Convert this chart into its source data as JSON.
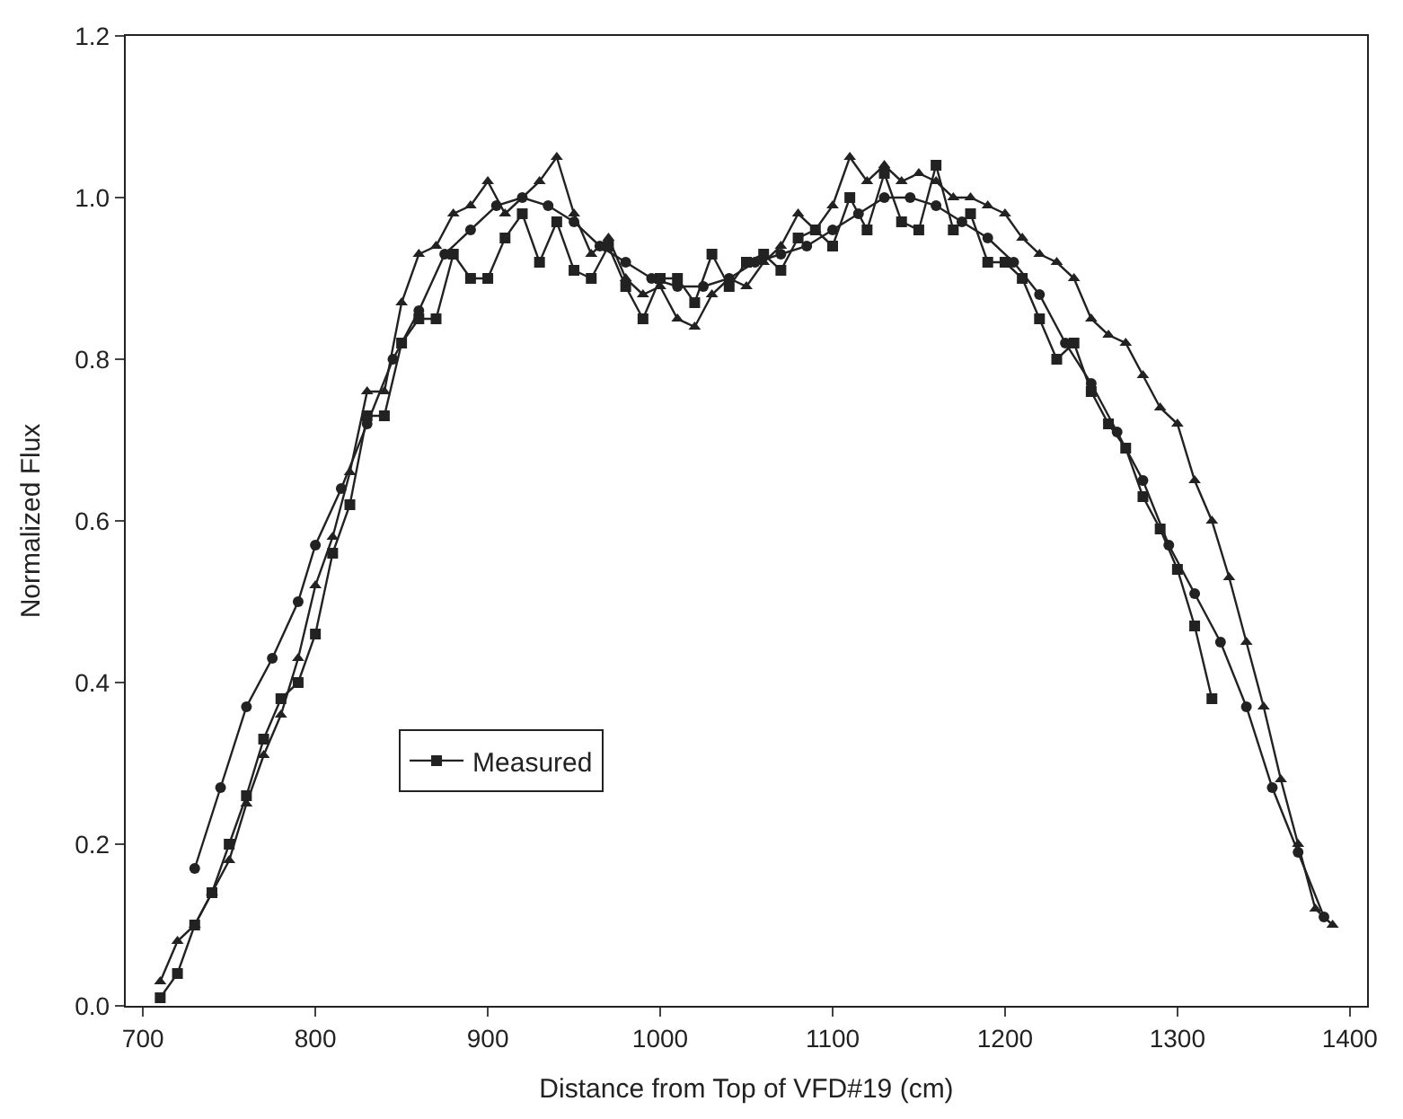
{
  "chart_data": {
    "type": "line",
    "xlabel": "Distance from Top of VFD#19 (cm)",
    "ylabel": "Normalized Flux",
    "xlim": [
      690,
      1410
    ],
    "xticks": [
      700,
      800,
      900,
      1000,
      1100,
      1200,
      1300,
      1400
    ],
    "ylim": [
      0,
      1.2
    ],
    "yticks": [
      {
        "value": 0,
        "label": "0.0"
      },
      0.2,
      0.4,
      0.6,
      0.8,
      {
        "value": 1,
        "label": "1.0"
      },
      1.2
    ],
    "legend": "bottom left",
    "line_style": "solid",
    "series": [
      {
        "name": "Measured",
        "color": "#222222",
        "marker": "square",
        "x": [
          710,
          720,
          730,
          740,
          750,
          760,
          770,
          780,
          790,
          800,
          810,
          820,
          830,
          840,
          850,
          860,
          870,
          880,
          890,
          900,
          910,
          920,
          930,
          940,
          950,
          960,
          970,
          980,
          990,
          1000,
          1010,
          1020,
          1030,
          1040,
          1050,
          1060,
          1070,
          1080,
          1090,
          1100,
          1110,
          1120,
          1130,
          1140,
          1150,
          1160,
          1170,
          1180,
          1190,
          1200,
          1210,
          1220,
          1230,
          1240,
          1250,
          1260,
          1270,
          1280,
          1290,
          1300,
          1310,
          1320
        ],
        "values": [
          0.01,
          0.04,
          0.1,
          0.14,
          0.2,
          0.26,
          0.33,
          0.38,
          0.4,
          0.46,
          0.56,
          0.62,
          0.73,
          0.73,
          0.82,
          0.85,
          0.85,
          0.93,
          0.9,
          0.9,
          0.95,
          0.98,
          0.92,
          0.97,
          0.91,
          0.9,
          0.94,
          0.89,
          0.85,
          0.9,
          0.9,
          0.87,
          0.93,
          0.89,
          0.92,
          0.93,
          0.91,
          0.95,
          0.96,
          0.94,
          1.0,
          0.96,
          1.03,
          0.97,
          0.96,
          1.04,
          0.96,
          0.98,
          0.92,
          0.92,
          0.9,
          0.85,
          0.8,
          0.82,
          0.76,
          0.72,
          0.69,
          0.63,
          0.59,
          0.54,
          0.47,
          0.38
        ]
      },
      {
        "color": "#222222",
        "marker": "circle",
        "x": [
          730,
          745,
          760,
          775,
          790,
          800,
          815,
          830,
          845,
          860,
          875,
          890,
          905,
          920,
          935,
          950,
          965,
          980,
          995,
          1010,
          1025,
          1040,
          1055,
          1070,
          1085,
          1100,
          1115,
          1130,
          1145,
          1160,
          1175,
          1190,
          1205,
          1220,
          1235,
          1250,
          1265,
          1280,
          1295,
          1310,
          1325,
          1340,
          1355,
          1370,
          1385
        ],
        "values": [
          0.17,
          0.27,
          0.37,
          0.43,
          0.5,
          0.57,
          0.64,
          0.72,
          0.8,
          0.86,
          0.93,
          0.96,
          0.99,
          1.0,
          0.99,
          0.97,
          0.94,
          0.92,
          0.9,
          0.89,
          0.89,
          0.9,
          0.92,
          0.93,
          0.94,
          0.96,
          0.98,
          1.0,
          1.0,
          0.99,
          0.97,
          0.95,
          0.92,
          0.88,
          0.82,
          0.77,
          0.71,
          0.65,
          0.57,
          0.51,
          0.45,
          0.37,
          0.27,
          0.19,
          0.11
        ]
      },
      {
        "color": "#222222",
        "marker": "triangle",
        "x": [
          710,
          720,
          730,
          740,
          750,
          760,
          770,
          780,
          790,
          800,
          810,
          820,
          830,
          840,
          850,
          860,
          870,
          880,
          890,
          900,
          910,
          920,
          930,
          940,
          950,
          960,
          970,
          980,
          990,
          1000,
          1010,
          1020,
          1030,
          1040,
          1050,
          1060,
          1070,
          1080,
          1090,
          1100,
          1110,
          1120,
          1130,
          1140,
          1150,
          1160,
          1170,
          1180,
          1190,
          1200,
          1210,
          1220,
          1230,
          1240,
          1250,
          1260,
          1270,
          1280,
          1290,
          1300,
          1310,
          1320,
          1330,
          1340,
          1350,
          1360,
          1370,
          1380,
          1390
        ],
        "values": [
          0.03,
          0.08,
          0.1,
          0.14,
          0.18,
          0.25,
          0.31,
          0.36,
          0.43,
          0.52,
          0.58,
          0.66,
          0.76,
          0.76,
          0.87,
          0.93,
          0.94,
          0.98,
          0.99,
          1.02,
          0.98,
          1.0,
          1.02,
          1.05,
          0.98,
          0.93,
          0.95,
          0.9,
          0.88,
          0.89,
          0.85,
          0.84,
          0.88,
          0.9,
          0.89,
          0.92,
          0.94,
          0.98,
          0.96,
          0.99,
          1.05,
          1.02,
          1.04,
          1.02,
          1.03,
          1.02,
          1.0,
          1.0,
          0.99,
          0.98,
          0.95,
          0.93,
          0.92,
          0.9,
          0.85,
          0.83,
          0.82,
          0.78,
          0.74,
          0.72,
          0.65,
          0.6,
          0.53,
          0.45,
          0.37,
          0.28,
          0.2,
          0.12,
          0.1
        ]
      }
    ]
  }
}
